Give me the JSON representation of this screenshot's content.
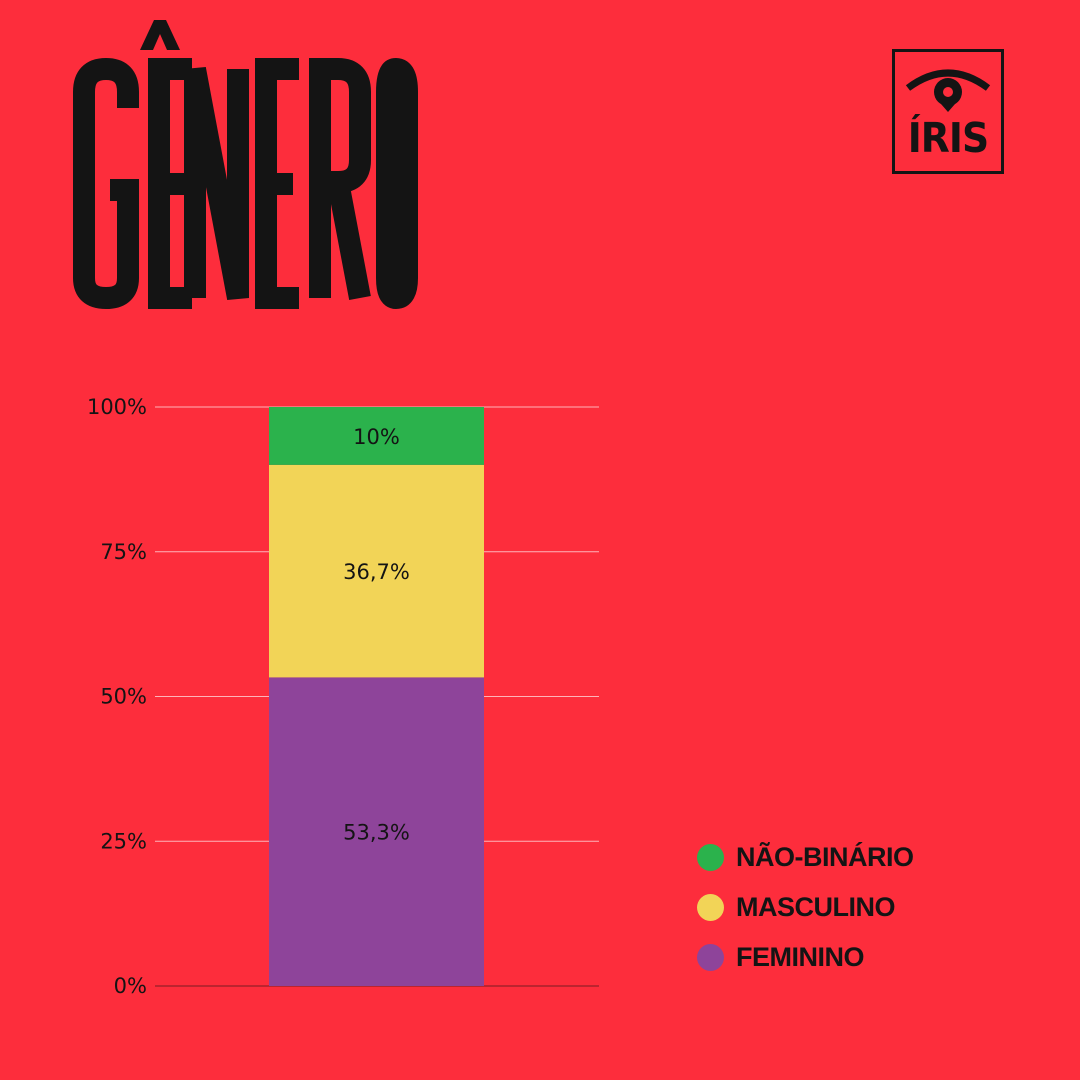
{
  "title": "GÊNERO",
  "brand": {
    "name": "ÍRIS",
    "icon": "eye-icon"
  },
  "colors": {
    "background": "#FD2D3C",
    "text": "#141414",
    "nao_binario": "#2BB24C",
    "masculino": "#F2D457",
    "feminino": "#8E449A",
    "gridline": "#FFB3B9"
  },
  "chart_data": {
    "type": "bar",
    "stacked": true,
    "categories": [
      ""
    ],
    "series": [
      {
        "name": "FEMININO",
        "values": [
          53.3
        ],
        "label": "53,3%",
        "color": "#8E449A"
      },
      {
        "name": "MASCULINO",
        "values": [
          36.7
        ],
        "label": "36,7%",
        "color": "#F2D457"
      },
      {
        "name": "NÃO-BINÁRIO",
        "values": [
          10
        ],
        "label": "10%",
        "color": "#2BB24C"
      }
    ],
    "ylim": [
      0,
      100
    ],
    "yticks": [
      {
        "value": 0,
        "label": "0%"
      },
      {
        "value": 25,
        "label": "25%"
      },
      {
        "value": 50,
        "label": "50%"
      },
      {
        "value": 75,
        "label": "75%"
      },
      {
        "value": 100,
        "label": "100%"
      }
    ],
    "grid": true,
    "legend_position": "bottom-right"
  },
  "legend": [
    {
      "label": "NÃO-BINÁRIO",
      "color": "#2BB24C"
    },
    {
      "label": "MASCULINO",
      "color": "#F2D457"
    },
    {
      "label": "FEMININO",
      "color": "#8E449A"
    }
  ]
}
